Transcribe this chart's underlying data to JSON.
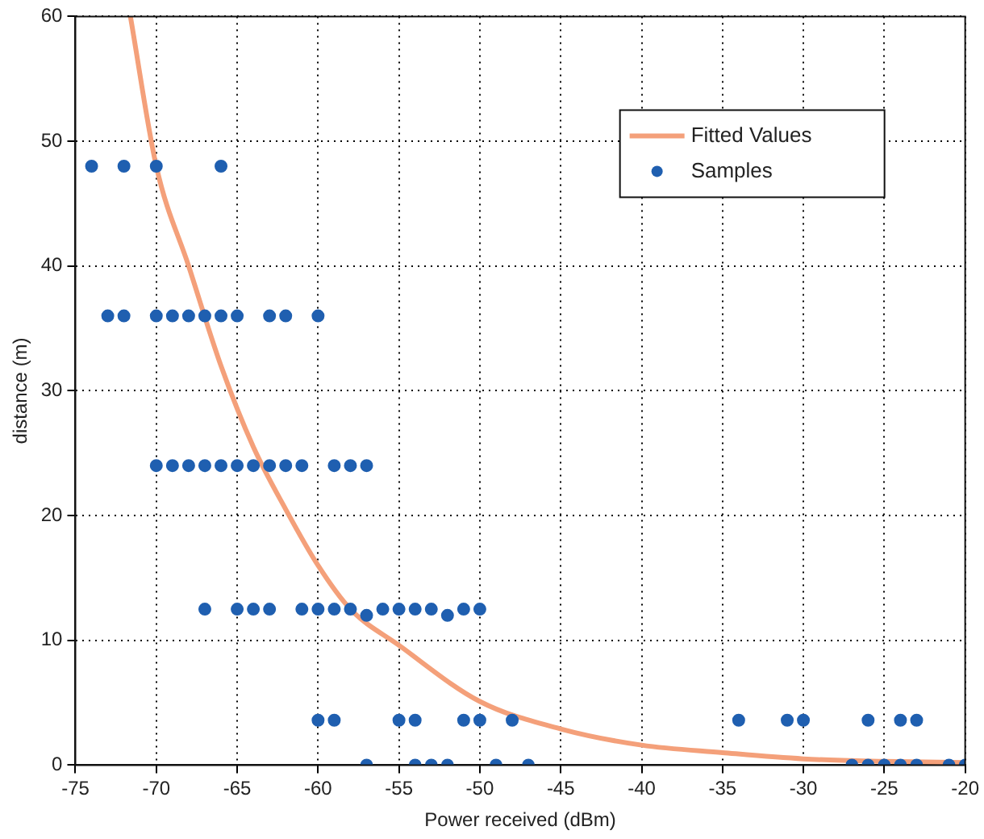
{
  "chart_data": {
    "type": "scatter",
    "xlabel": "Power received (dBm)",
    "ylabel": "distance (m)",
    "xlim": [
      -75,
      -20
    ],
    "xticks": [
      -75,
      -70,
      -65,
      -60,
      -55,
      -50,
      -45,
      -40,
      -35,
      -30,
      -25,
      -20
    ],
    "ylim": [
      0,
      60
    ],
    "yticks": [
      0,
      10,
      20,
      30,
      40,
      50,
      60
    ],
    "grid": true,
    "legend": "top right",
    "series": [
      {
        "name": "Fitted Values",
        "type": "line",
        "color": "#f4a07a",
        "marker": "none",
        "line_style": "solid",
        "x": [
          -71.6,
          -70,
          -68,
          -66,
          -64,
          -62,
          -60,
          -58,
          -55,
          -50,
          -45,
          -40,
          -35,
          -30,
          -25,
          -20
        ],
        "values": [
          60,
          48,
          40,
          32,
          25.5,
          20.5,
          16,
          12.5,
          9.6,
          5.1,
          2.9,
          1.6,
          1,
          0.5,
          0.3,
          0.2
        ]
      },
      {
        "name": "Samples",
        "type": "scatter",
        "color": "#1f5fb0",
        "marker": "circle",
        "x": [
          -74,
          -72,
          -70,
          -66,
          -73,
          -72,
          -70,
          -69,
          -68,
          -67,
          -66,
          -65,
          -63,
          -62,
          -60,
          -70,
          -69,
          -68,
          -67,
          -66,
          -65,
          -64,
          -63,
          -62,
          -61,
          -59,
          -58,
          -57,
          -67,
          -65,
          -64,
          -63,
          -61,
          -60,
          -59,
          -58,
          -57,
          -56,
          -55,
          -54,
          -53,
          -52,
          -51,
          -50,
          -60,
          -59,
          -55,
          -54,
          -51,
          -50,
          -48,
          -34,
          -31,
          -30,
          -26,
          -24,
          -23,
          -57,
          -54,
          -53,
          -52,
          -49,
          -47,
          -27,
          -26,
          -25,
          -24,
          -23,
          -21,
          -20
        ],
        "values": [
          48,
          48,
          48,
          48,
          36,
          36,
          36,
          36,
          36,
          36,
          36,
          36,
          36,
          36,
          36,
          24,
          24,
          24,
          24,
          24,
          24,
          24,
          24,
          24,
          24,
          24,
          24,
          24,
          12.5,
          12.5,
          12.5,
          12.5,
          12.5,
          12.5,
          12.5,
          12.5,
          12,
          12.5,
          12.5,
          12.5,
          12.5,
          12,
          12.5,
          12.5,
          3.6,
          3.6,
          3.6,
          3.6,
          3.6,
          3.6,
          3.6,
          3.6,
          3.6,
          3.6,
          3.6,
          3.6,
          3.6,
          0,
          0,
          0,
          0,
          0,
          0,
          0,
          0,
          0,
          0,
          0,
          0,
          0
        ]
      }
    ]
  }
}
